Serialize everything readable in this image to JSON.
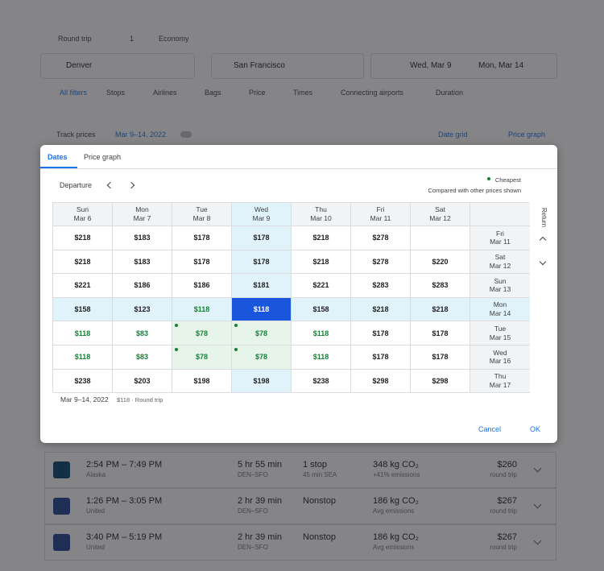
{
  "search": {
    "trip": "Round trip",
    "passengers": "1",
    "cabin": "Economy",
    "origin": "Denver",
    "destination": "San Francisco",
    "depart": "Wed, Mar 9",
    "return": "Mon, Mar 14"
  },
  "filters": [
    "All filters",
    "Stops",
    "Airlines",
    "Bags",
    "Price",
    "Times",
    "Connecting airports",
    "Duration"
  ],
  "track": {
    "label": "Track prices",
    "dates": "Mar 9–14, 2022",
    "date_grid": "Date grid",
    "price_graph": "Price graph"
  },
  "dialog": {
    "tabs": [
      "Dates",
      "Price graph"
    ],
    "departure": "Departure",
    "cheapest": "Cheapest",
    "note": "Compared with other prices shown",
    "return": "Return",
    "columns": [
      {
        "day": "Sun",
        "date": "Mar 6"
      },
      {
        "day": "Mon",
        "date": "Mar 7"
      },
      {
        "day": "Tue",
        "date": "Mar 8"
      },
      {
        "day": "Wed",
        "date": "Mar 9"
      },
      {
        "day": "Thu",
        "date": "Mar 10"
      },
      {
        "day": "Fri",
        "date": "Mar 11"
      },
      {
        "day": "Sat",
        "date": "Mar 12"
      }
    ],
    "rows": [
      {
        "day": "Fri",
        "date": "Mar 11",
        "prices": [
          "$218",
          "$183",
          "$178",
          "$178",
          "$218",
          "$278",
          null
        ]
      },
      {
        "day": "Sat",
        "date": "Mar 12",
        "prices": [
          "$218",
          "$183",
          "$178",
          "$178",
          "$218",
          "$278",
          "$220"
        ]
      },
      {
        "day": "Sun",
        "date": "Mar 13",
        "prices": [
          "$221",
          "$186",
          "$186",
          "$181",
          "$221",
          "$283",
          "$283"
        ]
      },
      {
        "day": "Mon",
        "date": "Mar 14",
        "prices": [
          "$158",
          "$123",
          "$118",
          "$118",
          "$158",
          "$218",
          "$218"
        ]
      },
      {
        "day": "Tue",
        "date": "Mar 15",
        "prices": [
          "$118",
          "$83",
          "$78",
          "$78",
          "$118",
          "$178",
          "$178"
        ]
      },
      {
        "day": "Wed",
        "date": "Mar 16",
        "prices": [
          "$118",
          "$83",
          "$78",
          "$78",
          "$118",
          "$178",
          "$178"
        ]
      },
      {
        "day": "Thu",
        "date": "Mar 17",
        "prices": [
          "$238",
          "$203",
          "$198",
          "$198",
          "$238",
          "$298",
          "$298"
        ]
      }
    ],
    "selected": [
      3,
      3
    ],
    "low_color": "#188038",
    "summary": {
      "dates": "Mar 9–14, 2022",
      "price": "$118 · Round trip"
    },
    "buttons": [
      "Cancel",
      "OK"
    ]
  },
  "flights": [
    {
      "times": "2:54 PM – 7:49 PM",
      "airline": "Alaska",
      "duration": "5 hr 55 min",
      "route": "DEN–SFO",
      "stops": "1 stop",
      "layover": "45 min SEA",
      "co2": "348 kg CO₂",
      "emissions": "+41% emissions",
      "price": "$260",
      "price_note": "round trip"
    },
    {
      "times": "1:26 PM – 3:05 PM",
      "airline": "United",
      "duration": "2 hr 39 min",
      "route": "DEN–SFO",
      "stops": "Nonstop",
      "layover": null,
      "co2": "186 kg CO₂",
      "emissions": "Avg emissions",
      "price": "$267",
      "price_note": "round trip"
    },
    {
      "times": "3:40 PM – 5:19 PM",
      "airline": "United",
      "duration": "2 hr 39 min",
      "route": "DEN–SFO",
      "stops": "Nonstop",
      "layover": null,
      "co2": "186 kg CO₂",
      "emissions": "Avg emissions",
      "price": "$267",
      "price_note": "round trip"
    }
  ]
}
